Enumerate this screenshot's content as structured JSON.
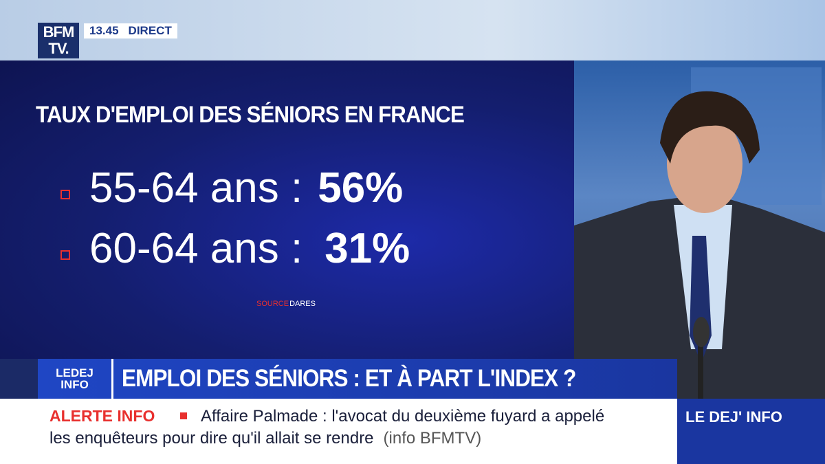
{
  "header": {
    "logo": "BFM TV.",
    "time": "13.45",
    "status": "DIRECT"
  },
  "graphic": {
    "title": "TAUX D'EMPLOI DES SÉNIORS EN FRANCE",
    "rows": [
      [
        "55-64 ans :",
        "56%"
      ],
      [
        "60-64 ans :",
        "31%"
      ]
    ],
    "source_label": "SOURCE",
    "source": "DARES"
  },
  "banner": {
    "logo_top": "LEDEJ",
    "logo_bottom": "INFO",
    "headline": "EMPLOI DES SÉNIORS : ET À PART L'INDEX ?"
  },
  "ticker": {
    "label": "ALERTE INFO",
    "line1": "Affaire Palmade : l'avocat du deuxième fuyard a appelé",
    "line2": "les enquêteurs pour dire qu'il allait se rendre",
    "tag": "(info BFMTV)"
  },
  "corner": {
    "label": "LE DEJ' INFO"
  }
}
